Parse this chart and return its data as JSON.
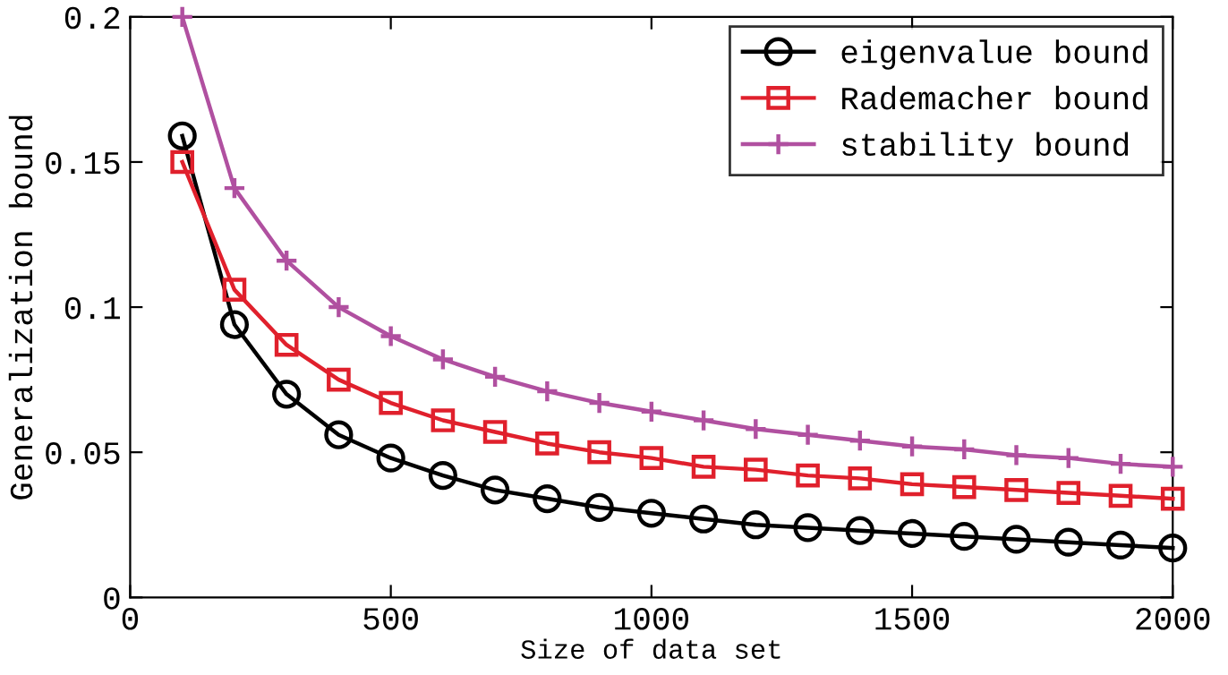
{
  "chart_data": {
    "type": "line",
    "xlabel": "Size of data set",
    "ylabel": "Generalization bound",
    "x": [
      100,
      200,
      300,
      400,
      500,
      600,
      700,
      800,
      900,
      1000,
      1100,
      1200,
      1300,
      1400,
      1500,
      1600,
      1700,
      1800,
      1900,
      2000
    ],
    "series": [
      {
        "name": "eigenvalue bound",
        "color": "#000000",
        "marker": "circle",
        "values": [
          0.159,
          0.094,
          0.07,
          0.056,
          0.048,
          0.042,
          0.037,
          0.034,
          0.031,
          0.029,
          0.027,
          0.025,
          0.024,
          0.023,
          0.022,
          0.021,
          0.02,
          0.019,
          0.018,
          0.017
        ]
      },
      {
        "name": "Rademacher bound",
        "color": "#e0202c",
        "marker": "square",
        "values": [
          0.15,
          0.106,
          0.087,
          0.075,
          0.067,
          0.061,
          0.057,
          0.053,
          0.05,
          0.048,
          0.045,
          0.044,
          0.042,
          0.041,
          0.039,
          0.038,
          0.037,
          0.036,
          0.035,
          0.034
        ]
      },
      {
        "name": "stability bound",
        "color": "#b050a0",
        "marker": "cross",
        "values": [
          0.2,
          0.141,
          0.116,
          0.1,
          0.09,
          0.082,
          0.076,
          0.071,
          0.067,
          0.064,
          0.061,
          0.058,
          0.056,
          0.054,
          0.052,
          0.051,
          0.049,
          0.048,
          0.046,
          0.045
        ]
      }
    ],
    "xlim": [
      0,
      2000
    ],
    "xticks": [
      0,
      500,
      1000,
      1500,
      2000
    ],
    "ylim": [
      0,
      0.2
    ],
    "yticks": [
      0,
      0.05,
      0.1,
      0.15,
      0.2
    ],
    "grid": false,
    "legend": "top right",
    "line_style": "solid"
  }
}
